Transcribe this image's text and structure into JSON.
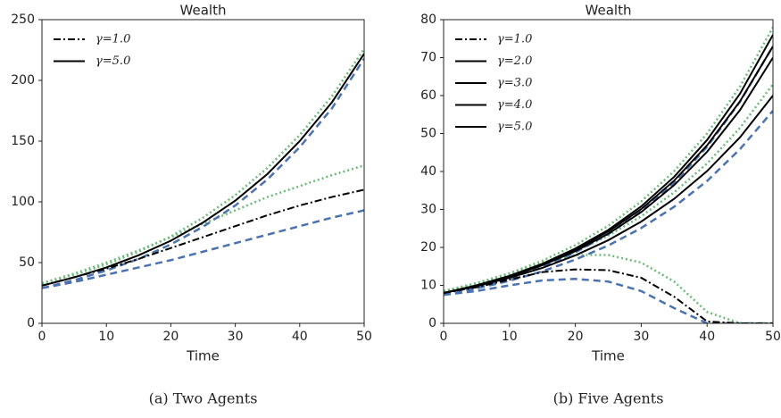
{
  "chart_data": [
    {
      "type": "line",
      "title": "Wealth",
      "xlabel": "Time",
      "caption": "(a) Two Agents",
      "x": [
        0,
        5,
        10,
        15,
        20,
        25,
        30,
        35,
        40,
        45,
        50
      ],
      "xlim": [
        0,
        50
      ],
      "xticks": [
        0,
        10,
        20,
        30,
        40,
        50
      ],
      "ylim": [
        0,
        250
      ],
      "yticks": [
        0,
        50,
        100,
        150,
        200,
        250
      ],
      "legend": "upper left",
      "series": [
        {
          "color": "#4c72b0",
          "style": "dashed",
          "values": [
            29,
            34,
            40,
            46,
            52,
            59,
            66,
            73,
            80,
            87,
            93
          ]
        },
        {
          "color": "#6dbb7a",
          "style": "dotted",
          "values": [
            33,
            41,
            50,
            60,
            71,
            82,
            93,
            104,
            113,
            122,
            130
          ]
        },
        {
          "color": "#4c72b0",
          "style": "dashed",
          "values": [
            29,
            35.5,
            43.5,
            53,
            65,
            79.5,
            97,
            118.5,
            145,
            177,
            218
          ]
        },
        {
          "color": "#6dbb7a",
          "style": "dotted",
          "values": [
            33,
            40,
            48.5,
            59,
            71.5,
            87,
            105.5,
            128,
            155,
            187,
            226
          ]
        },
        {
          "name": "γ=1.0",
          "color": "#000000",
          "style": "dashdot",
          "values": [
            31,
            38,
            45,
            53,
            62,
            71,
            80,
            89,
            97,
            104,
            110
          ]
        },
        {
          "name": "γ=5.0",
          "color": "#000000",
          "style": "solid",
          "values": [
            31,
            37.8,
            46,
            56,
            68,
            83,
            101,
            123,
            150,
            182,
            222
          ]
        }
      ]
    },
    {
      "type": "line",
      "title": "Wealth",
      "xlabel": "Time",
      "caption": "(b) Five Agents",
      "x": [
        0,
        5,
        10,
        15,
        20,
        25,
        30,
        35,
        40,
        45,
        50
      ],
      "xlim": [
        0,
        50
      ],
      "xticks": [
        0,
        10,
        20,
        30,
        40,
        50
      ],
      "ylim": [
        0,
        80
      ],
      "yticks": [
        0,
        10,
        20,
        30,
        40,
        50,
        60,
        70,
        80
      ],
      "legend": "upper left",
      "series": [
        {
          "color": "#4c72b0",
          "style": "dashed",
          "values": [
            7.5,
            8.5,
            10,
            11.3,
            11.7,
            11,
            8.5,
            4,
            0,
            0,
            0
          ]
        },
        {
          "color": "#6dbb7a",
          "style": "dotted",
          "values": [
            8.5,
            10.5,
            13,
            16,
            18,
            18,
            16,
            11,
            3,
            0,
            0
          ]
        },
        {
          "color": "#4c72b0",
          "style": "dashed",
          "values": [
            7.5,
            9.2,
            11.2,
            13.7,
            16.8,
            20.5,
            25.1,
            30.7,
            37.5,
            45.9,
            56
          ]
        },
        {
          "color": "#6dbb7a",
          "style": "dotted",
          "values": [
            8.5,
            10.4,
            12.7,
            15.5,
            18.9,
            23.1,
            28.2,
            34.5,
            42.1,
            51.5,
            63
          ]
        },
        {
          "color": "#4c72b0",
          "style": "dashed",
          "values": [
            7.5,
            9.4,
            11.8,
            14.9,
            18.7,
            23.5,
            29.5,
            37,
            46.5,
            58.4,
            73
          ]
        },
        {
          "color": "#6dbb7a",
          "style": "dotted",
          "values": [
            8.5,
            10.6,
            13.2,
            16.5,
            20.6,
            25.7,
            32.1,
            40.1,
            50,
            62.4,
            78
          ]
        },
        {
          "name": "γ=1.0",
          "color": "#000000",
          "style": "dashdot",
          "values": [
            8,
            9.5,
            11.5,
            13.5,
            14.2,
            14,
            12,
            7,
            0.5,
            0,
            0
          ]
        },
        {
          "name": "γ=2.0",
          "color": "#000000",
          "style": "solid",
          "values": [
            8,
            9.8,
            12,
            14.6,
            17.9,
            21.9,
            26.8,
            32.8,
            40.1,
            49,
            60
          ]
        },
        {
          "name": "γ=3.0",
          "color": "#000000",
          "style": "solid",
          "values": [
            8,
            9.9,
            12.3,
            15.3,
            19,
            23.6,
            29.3,
            36.4,
            45.2,
            56.2,
            70
          ]
        },
        {
          "name": "γ=4.0",
          "color": "#000000",
          "style": "solid",
          "values": [
            8,
            10,
            12.4,
            15.5,
            19.4,
            24.2,
            30.1,
            37.6,
            46.9,
            58.5,
            73
          ]
        },
        {
          "name": "γ=5.0",
          "color": "#000000",
          "style": "solid",
          "values": [
            8,
            10,
            12.5,
            15.7,
            19.7,
            24.6,
            30.8,
            38.6,
            48.3,
            60.5,
            76
          ]
        }
      ]
    }
  ]
}
